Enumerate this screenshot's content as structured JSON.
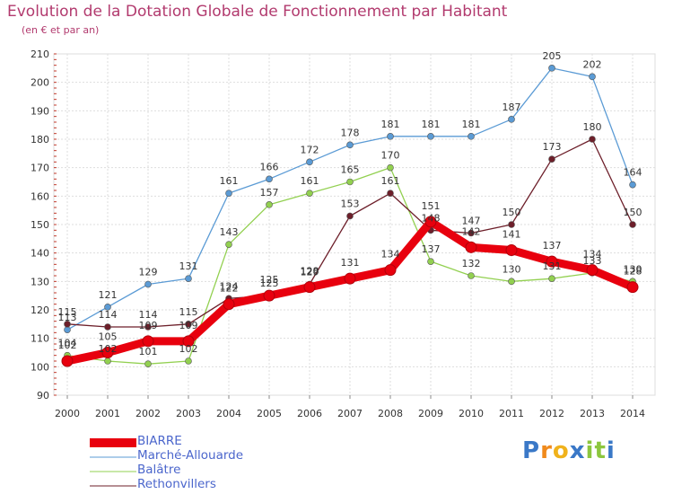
{
  "header": {
    "title": "Evolution de la Dotation Globale de Fonctionnement par Habitant",
    "subtitle": "(en € et par an)"
  },
  "brand": {
    "name": "Proxiti",
    "letters": [
      "P",
      "r",
      "o",
      "x",
      "i",
      "t",
      "i"
    ]
  },
  "chart_data": {
    "type": "line",
    "title": "Evolution de la Dotation Globale de Fonctionnement par Habitant",
    "subtitle": "(en € et par an)",
    "xlabel": "",
    "ylabel": "",
    "ylim": [
      90,
      210
    ],
    "yticks": [
      90,
      100,
      110,
      120,
      130,
      140,
      150,
      160,
      170,
      180,
      190,
      200,
      210
    ],
    "x": [
      "2000",
      "2001",
      "2002",
      "2003",
      "2004",
      "2005",
      "2006",
      "2007",
      "2008",
      "2009",
      "2010",
      "2011",
      "2012",
      "2013",
      "2014"
    ],
    "grid": true,
    "legend_position": "bottom-left",
    "series": [
      {
        "name": "BIARRE",
        "color": "#e8000e",
        "values": [
          102,
          105,
          109,
          109,
          122,
          125,
          128,
          131,
          134,
          151,
          142,
          141,
          137,
          134,
          128
        ]
      },
      {
        "name": "Marché-Allouarde",
        "color": "#5b9bd5",
        "values": [
          113,
          121,
          129,
          131,
          161,
          166,
          172,
          178,
          181,
          181,
          181,
          187,
          205,
          202,
          164
        ]
      },
      {
        "name": "Balâtre",
        "color": "#92d050",
        "values": [
          104,
          102,
          101,
          102,
          143,
          157,
          161,
          165,
          170,
          137,
          132,
          130,
          131,
          133,
          130
        ]
      },
      {
        "name": "Rethonvillers",
        "color": "#6d1f2a",
        "values": [
          115,
          114,
          114,
          115,
          124,
          125,
          129,
          153,
          161,
          148,
          147,
          150,
          173,
          180,
          150
        ]
      }
    ]
  }
}
